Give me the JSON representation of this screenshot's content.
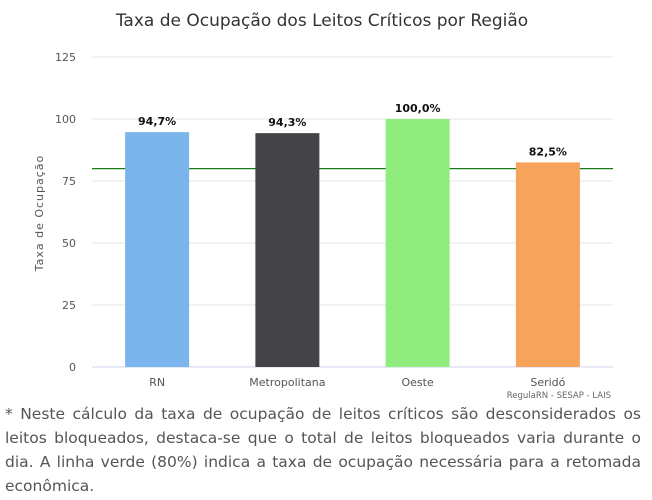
{
  "chart_data": {
    "type": "bar",
    "title": "Taxa de Ocupação dos Leitos Críticos por Região",
    "ylabel": "Taxa de Ocupação",
    "xlabel": "",
    "ylim": [
      0,
      125
    ],
    "yticks": [
      0,
      25,
      50,
      75,
      100,
      125
    ],
    "categories": [
      "RN",
      "Metropolitana",
      "Oeste",
      "Seridó"
    ],
    "values": [
      94.7,
      94.3,
      100.0,
      82.5
    ],
    "data_labels": [
      "94,7%",
      "94,3%",
      "100,0%",
      "82,5%"
    ],
    "colors": [
      "#7cb5ec",
      "#434348",
      "#90ed7d",
      "#f7a35c"
    ],
    "reference_line": {
      "value": 80,
      "color": "#1a7a1a"
    },
    "grid": true,
    "legend": "none",
    "credits": "RegulaRN - SESAP - LAIS"
  },
  "note": "* Neste cálculo da taxa de ocupação de leitos críticos são desconsiderados os leitos bloqueados, destaca-se que o total de leitos bloqueados varia durante o dia. A linha verde (80%) indica a taxa de ocupação necessária para a retomada econômica."
}
